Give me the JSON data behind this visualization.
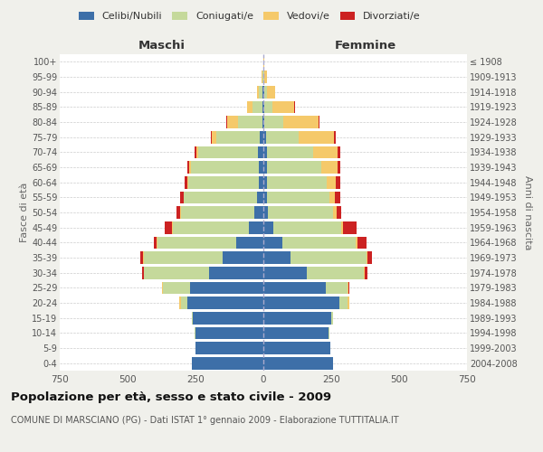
{
  "age_groups": [
    "0-4",
    "5-9",
    "10-14",
    "15-19",
    "20-24",
    "25-29",
    "30-34",
    "35-39",
    "40-44",
    "45-49",
    "50-54",
    "55-59",
    "60-64",
    "65-69",
    "70-74",
    "75-79",
    "80-84",
    "85-89",
    "90-94",
    "95-99",
    "100+"
  ],
  "birth_years": [
    "2004-2008",
    "1999-2003",
    "1994-1998",
    "1989-1993",
    "1984-1988",
    "1979-1983",
    "1974-1978",
    "1969-1973",
    "1964-1968",
    "1959-1963",
    "1954-1958",
    "1949-1953",
    "1944-1948",
    "1939-1943",
    "1934-1938",
    "1929-1933",
    "1924-1928",
    "1919-1923",
    "1914-1918",
    "1909-1913",
    "≤ 1908"
  ],
  "male": {
    "celibi": [
      265,
      250,
      250,
      260,
      280,
      270,
      200,
      150,
      100,
      55,
      35,
      22,
      18,
      18,
      20,
      15,
      5,
      4,
      2,
      0,
      0
    ],
    "coniugati": [
      0,
      0,
      2,
      2,
      25,
      100,
      240,
      290,
      290,
      280,
      270,
      270,
      260,
      250,
      220,
      160,
      90,
      35,
      15,
      4,
      1
    ],
    "vedovi": [
      0,
      0,
      0,
      0,
      5,
      5,
      0,
      2,
      2,
      2,
      2,
      2,
      2,
      4,
      8,
      15,
      40,
      20,
      8,
      2,
      0
    ],
    "divorziati": [
      0,
      0,
      0,
      0,
      0,
      0,
      8,
      12,
      10,
      28,
      12,
      12,
      10,
      8,
      5,
      2,
      2,
      0,
      0,
      0,
      0
    ]
  },
  "female": {
    "nubili": [
      255,
      245,
      240,
      250,
      280,
      230,
      160,
      100,
      70,
      35,
      18,
      14,
      12,
      12,
      12,
      10,
      4,
      4,
      2,
      0,
      0
    ],
    "coniugate": [
      0,
      0,
      3,
      5,
      30,
      80,
      210,
      280,
      270,
      250,
      240,
      230,
      220,
      200,
      170,
      120,
      70,
      30,
      12,
      4,
      1
    ],
    "vedove": [
      0,
      0,
      0,
      0,
      5,
      3,
      3,
      3,
      5,
      8,
      12,
      20,
      35,
      60,
      90,
      130,
      130,
      80,
      30,
      8,
      2
    ],
    "divorziate": [
      0,
      0,
      0,
      0,
      0,
      5,
      10,
      18,
      35,
      50,
      18,
      18,
      15,
      10,
      10,
      5,
      2,
      2,
      0,
      0,
      0
    ]
  },
  "colors": {
    "celibi": "#3d6fa8",
    "coniugati": "#c5d99b",
    "vedovi": "#f5c96a",
    "divorziati": "#cc2222"
  },
  "xlim": 750,
  "title": "Popolazione per età, sesso e stato civile - 2009",
  "subtitle": "COMUNE DI MARSCIANO (PG) - Dati ISTAT 1° gennaio 2009 - Elaborazione TUTTITALIA.IT",
  "ylabel": "Fasce di età",
  "ylabel_right": "Anni di nascita",
  "legend_labels": [
    "Celibi/Nubili",
    "Coniugati/e",
    "Vedovi/e",
    "Divorziati/e"
  ],
  "background_color": "#f0f0eb",
  "plot_bg_color": "#ffffff",
  "grid_color": "#cccccc"
}
